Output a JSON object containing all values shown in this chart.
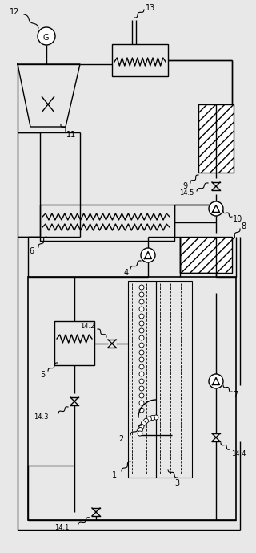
{
  "bg_color": "#e8e8e8",
  "line_color": "#000000",
  "fig_width": 3.2,
  "fig_height": 6.89,
  "dpi": 100
}
